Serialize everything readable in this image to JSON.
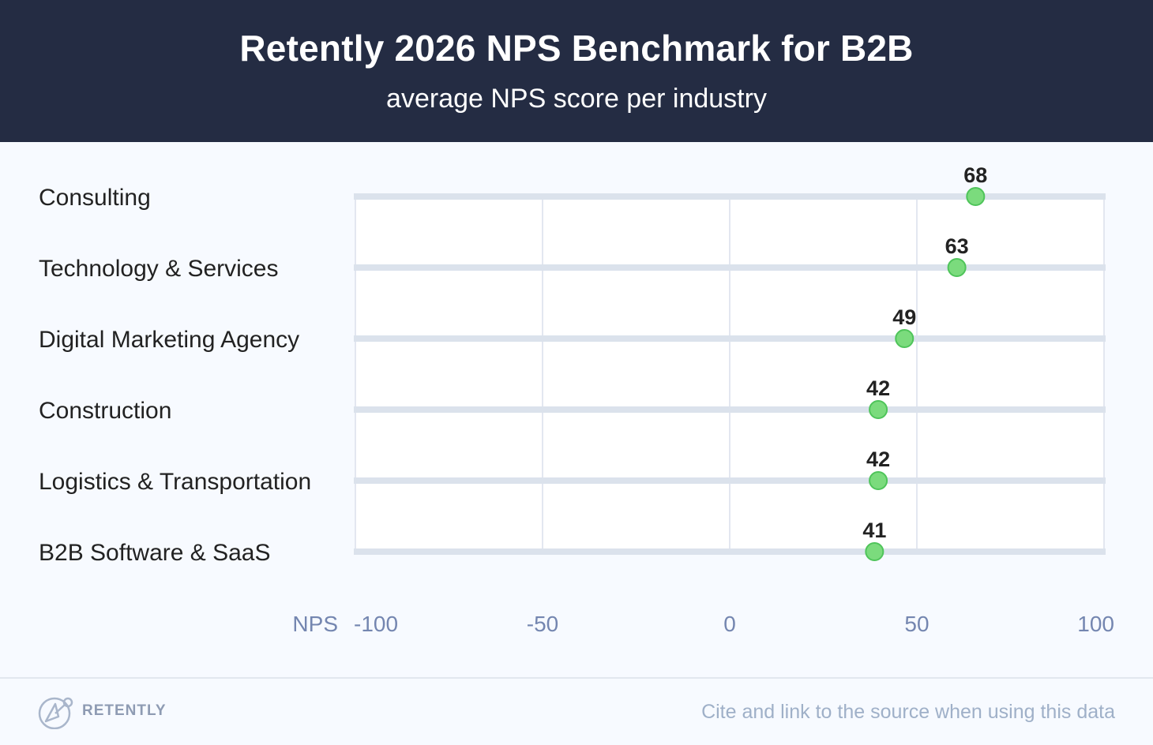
{
  "header": {
    "title": "Retently 2026 NPS Benchmark for B2B",
    "subtitle": "average NPS score per industry"
  },
  "footer": {
    "brand": "RETENTLY",
    "cite": "Cite and link to the source when using this data"
  },
  "colors": {
    "header_bg": "#242c43",
    "dot_fill": "#7bdb7d",
    "dot_stroke": "#4fc45a",
    "axis_label": "#7486b0"
  },
  "chart_data": {
    "type": "scatter",
    "title": "Retently 2026 NPS Benchmark for B2B",
    "subtitle": "average NPS score per industry",
    "xlabel": "NPS",
    "xlim": [
      -100,
      100
    ],
    "xticks": [
      "-100",
      "-50",
      "0",
      "50",
      "100"
    ],
    "categories": [
      "Consulting",
      "Technology & Services",
      "Digital Marketing Agency",
      "Construction",
      "Logistics & Transportation",
      "B2B Software & SaaS"
    ],
    "values": [
      68,
      63,
      49,
      42,
      42,
      41
    ],
    "value_labels": [
      "68",
      "63",
      "49",
      "42",
      "42",
      "41"
    ],
    "grid": true
  }
}
